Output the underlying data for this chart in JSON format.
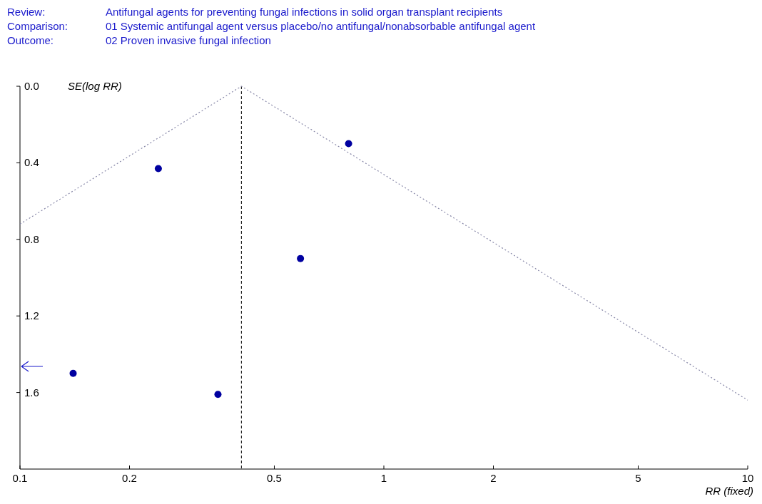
{
  "chart_data": {
    "type": "scatter",
    "title": "Review: Antifungal agents for preventing fungal infections in solid organ transplant recipients",
    "subtitle": "Comparison: 01 Systemic antifungal agent versus placebo/no antifungal/nonabsorbable antifungal agent",
    "annotations": [
      "Outcome: 02 Proven invasive fungal infection"
    ],
    "xlabel": "RR (fixed)",
    "ylabel": "SE(log RR)",
    "log": "x",
    "xlim": [
      0.1,
      10
    ],
    "xticks": [
      0.1,
      0.2,
      0.5,
      1,
      2,
      5,
      10
    ],
    "ylim": [
      2.0,
      0
    ],
    "yticks": [
      {
        "value": 0,
        "label": "0.0"
      },
      {
        "value": 0.4,
        "label": "0.4"
      },
      {
        "value": 0.8,
        "label": "0.8"
      },
      {
        "value": 1.2,
        "label": "1.2"
      },
      {
        "value": 1.6,
        "label": "1.6"
      }
    ],
    "series": [
      {
        "type": "scatter",
        "color": "#0000a0",
        "marker": "circle",
        "x": [
          0.24,
          0.8,
          0.59,
          0.14,
          0.35
        ],
        "values": [
          0.43,
          0.3,
          0.9,
          1.5,
          1.61
        ]
      },
      {
        "type": "line",
        "color": "#8888a8",
        "line_style": "dotted",
        "marker": "none",
        "x": [
          0.1,
          0.406,
          10
        ],
        "values": [
          0.72,
          0,
          1.64
        ]
      }
    ],
    "ref_lines": [
      {
        "axis": "x",
        "value": 0.406,
        "color": "#000000",
        "line_style": "dashed"
      }
    ]
  }
}
